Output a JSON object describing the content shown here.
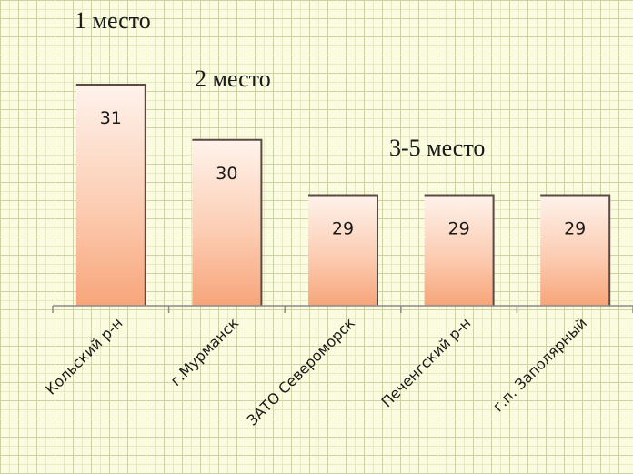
{
  "chart_data": {
    "type": "bar",
    "categories": [
      "Кольский р-н",
      "г.Мурманск",
      "ЗАТО Североморск",
      "Печенгский р-н",
      "г.п. Заполярный"
    ],
    "values": [
      31,
      30,
      29,
      29,
      29
    ],
    "ylim": [
      27,
      31.5
    ],
    "grid": true,
    "legend": "none",
    "annotations": [
      "1 место",
      "2 место",
      "3-5 место"
    ],
    "colors": {
      "bar_top": "#fef3ec",
      "bar_bottom": "#f7a57a",
      "bar_stroke": "#5b4a43",
      "axis": "#8a8a8a",
      "text": "#1a1a1a"
    }
  }
}
